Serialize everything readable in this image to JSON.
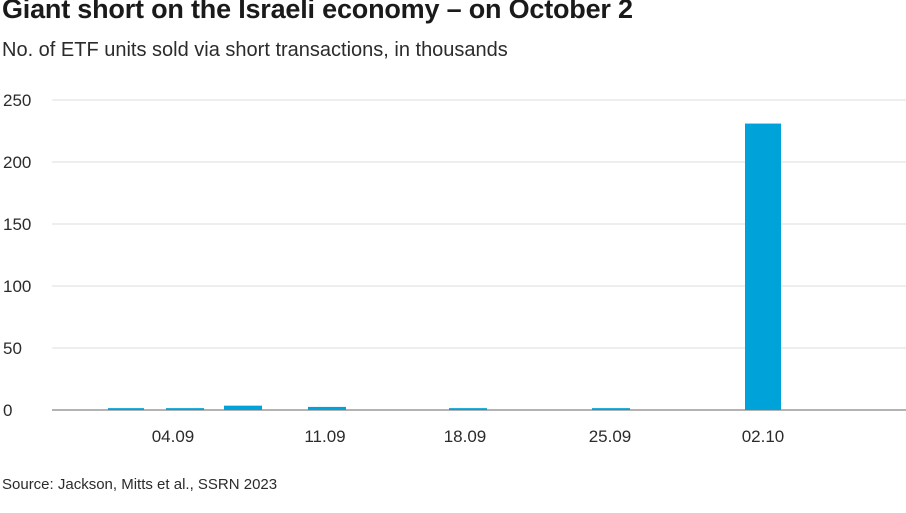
{
  "title": "Giant short on the Israeli economy – on October 2",
  "subtitle": "No. of  ETF units sold via short transactions, in thousands",
  "source": "Source: Jackson, Mitts et al., SSRN 2023",
  "colors": {
    "bar": "#00a3d9",
    "grid": "#dedede",
    "axis": "#9a9a9a"
  },
  "chart_data": {
    "type": "bar",
    "y_ticks": [
      0,
      50,
      100,
      150,
      200,
      250
    ],
    "ylim": [
      0,
      250
    ],
    "x_ticks": [
      "04.09",
      "11.09",
      "18.09",
      "25.09",
      "02.10"
    ],
    "values": [
      1.5,
      1.5,
      3.5,
      2.5,
      1.5,
      1.5,
      231
    ],
    "grid": true
  }
}
